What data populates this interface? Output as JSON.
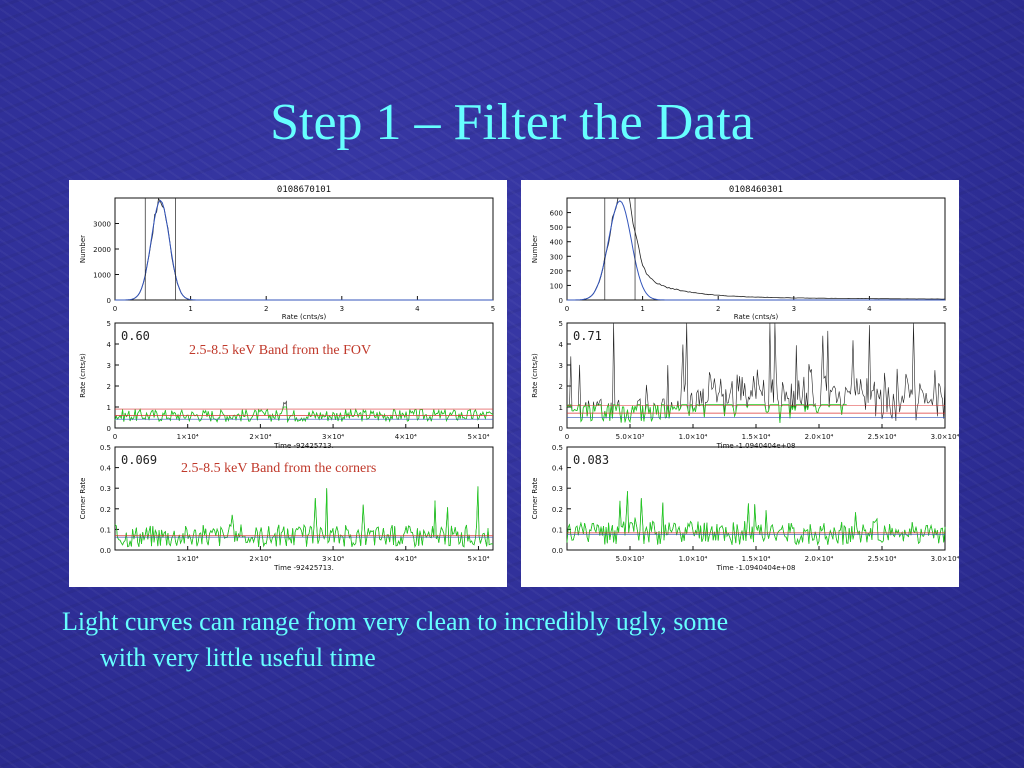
{
  "slide": {
    "title": "Step 1 – Filter the Data",
    "caption_line1": "Light curves can range from very clean to incredibly ugly, some",
    "caption_line2": "with very little useful time"
  },
  "colors": {
    "background": "#2f2f98",
    "title_text": "#66ffff",
    "annotation": "#c0392b",
    "curve_blue": "#3355bb",
    "data_green": "#22cc22",
    "filter_red": "#dd3333"
  },
  "annotations": {
    "fov_band": "2.5-8.5 keV Band from the FOV",
    "corner_band": "2.5-8.5 keV Band from the corners"
  },
  "chart_data": [
    {
      "type": "line",
      "obs_id": "0108670101",
      "title": "0108670101",
      "histogram": {
        "xlabel": "Rate (cnts/s)",
        "ylabel": "Number",
        "xlim": [
          0,
          5
        ],
        "ylim": [
          0,
          4000
        ],
        "xticks": [
          "0",
          "1",
          "2",
          "3",
          "4",
          "5"
        ],
        "yticks": [
          "0",
          "1000",
          "2000",
          "3000"
        ],
        "peak_rate": 0.6,
        "peak_count": 3900,
        "cut_lines": [
          0.4,
          0.8
        ]
      },
      "light_curve": {
        "ylabel": "Rate (cnts/s)",
        "xlabel": "Time -92425713.",
        "ylim": [
          0,
          5
        ],
        "yticks": [
          "0",
          "1",
          "2",
          "3",
          "4",
          "5"
        ],
        "xticks": [
          "0",
          "1×10⁴",
          "2×10⁴",
          "3×10⁴",
          "4×10⁴",
          "5×10⁴"
        ],
        "threshold_label": "0.60",
        "mean_rate": 0.6
      },
      "corner_curve": {
        "ylabel": "Corner Rate",
        "xlabel": "Time -92425713.",
        "ylim": [
          0,
          0.5
        ],
        "yticks": [
          "0.0",
          "0.1",
          "0.2",
          "0.3",
          "0.4",
          "0.5"
        ],
        "xticks": [
          "1×10⁴",
          "2×10⁴",
          "3×10⁴",
          "4×10⁴",
          "5×10⁴"
        ],
        "threshold_label": "0.069",
        "mean_rate": 0.069
      }
    },
    {
      "type": "line",
      "obs_id": "0108460301",
      "title": "0108460301",
      "histogram": {
        "xlabel": "Rate (cnts/s)",
        "ylabel": "Number",
        "xlim": [
          0,
          5
        ],
        "ylim": [
          0,
          700
        ],
        "xticks": [
          "0",
          "1",
          "2",
          "3",
          "4",
          "5"
        ],
        "yticks": [
          "0",
          "100",
          "200",
          "300",
          "400",
          "500",
          "600"
        ],
        "peak_rate": 0.7,
        "peak_count": 680,
        "cut_lines": [
          0.5,
          0.9
        ]
      },
      "light_curve": {
        "ylabel": "Rate (cnts/s)",
        "xlabel": "Time -1.0940404e+08",
        "ylim": [
          0,
          5
        ],
        "yticks": [
          "0",
          "1",
          "2",
          "3",
          "4",
          "5"
        ],
        "xticks": [
          "0",
          "5.0×10³",
          "1.0×10⁴",
          "1.5×10⁴",
          "2.0×10⁴",
          "2.5×10⁴",
          "3.0×10⁴"
        ],
        "threshold_label": "0.71",
        "mean_rate": 0.71
      },
      "corner_curve": {
        "ylabel": "Corner Rate",
        "xlabel": "Time -1.0940404e+08",
        "ylim": [
          0,
          0.5
        ],
        "yticks": [
          "0.0",
          "0.1",
          "0.2",
          "0.3",
          "0.4",
          "0.5"
        ],
        "xticks": [
          "5.0×10³",
          "1.0×10⁴",
          "1.5×10⁴",
          "2.0×10⁴",
          "2.5×10⁴",
          "3.0×10⁴"
        ],
        "threshold_label": "0.083",
        "mean_rate": 0.083
      }
    }
  ]
}
